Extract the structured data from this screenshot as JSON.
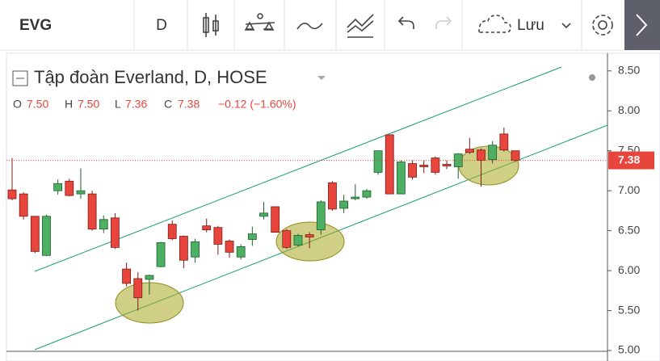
{
  "toolbar": {
    "symbol": "EVG",
    "interval": "D",
    "save": "Lưu"
  },
  "chart_data": {
    "type": "candlestick",
    "title": "Tập đoàn Everland, D, HOSE",
    "ohlc_legend": [
      {
        "label": "O",
        "value": "7.50"
      },
      {
        "label": "H",
        "value": "7.50"
      },
      {
        "label": "L",
        "value": "7.36"
      },
      {
        "label": "C",
        "value": "7.38"
      }
    ],
    "change": "−0.12 (−1.60%)",
    "last_price_label": "7.38",
    "up_color": "#4caf64",
    "down_color": "#e8453c",
    "open": [
      7.01,
      6.96,
      6.68,
      6.19,
      7.0,
      7.12,
      6.96,
      6.96,
      6.52,
      6.66,
      6.02,
      5.9,
      5.89,
      6.05,
      6.58,
      6.43,
      6.17,
      6.56,
      6.54,
      6.37,
      6.17,
      6.39,
      6.68,
      6.8,
      6.5,
      6.32,
      6.45,
      6.51,
      7.1,
      6.78,
      6.9,
      6.92,
      7.23,
      7.7,
      6.96,
      7.34,
      7.32,
      7.41,
      7.33,
      7.3,
      7.52,
      7.51,
      7.39,
      7.71,
      7.5
    ],
    "high": [
      7.41,
      6.98,
      6.68,
      6.7,
      7.14,
      7.15,
      7.28,
      7.0,
      6.69,
      6.72,
      6.1,
      5.98,
      5.95,
      6.36,
      6.63,
      6.44,
      6.4,
      6.65,
      6.56,
      6.39,
      6.33,
      6.55,
      6.86,
      6.8,
      6.52,
      6.46,
      6.48,
      6.88,
      7.12,
      6.95,
      7.08,
      7.02,
      7.5,
      7.7,
      7.38,
      7.38,
      7.38,
      7.43,
      7.38,
      7.47,
      7.66,
      7.53,
      7.62,
      7.79,
      7.5
    ],
    "low": [
      6.88,
      6.64,
      6.22,
      6.18,
      6.95,
      6.93,
      6.9,
      6.5,
      6.47,
      6.27,
      5.8,
      5.5,
      5.7,
      6.04,
      6.38,
      6.03,
      6.1,
      6.48,
      6.2,
      6.16,
      6.14,
      6.31,
      6.64,
      6.48,
      6.27,
      6.3,
      6.28,
      6.45,
      6.75,
      6.72,
      6.88,
      6.9,
      7.2,
      6.96,
      6.96,
      7.14,
      7.22,
      7.2,
      7.27,
      7.15,
      7.46,
      7.05,
      7.34,
      7.49,
      7.36
    ],
    "close": [
      6.9,
      6.68,
      6.24,
      6.68,
      7.09,
      6.94,
      7.0,
      6.52,
      6.64,
      6.29,
      5.84,
      5.66,
      5.94,
      6.35,
      6.4,
      6.13,
      6.36,
      6.51,
      6.33,
      6.23,
      6.3,
      6.46,
      6.72,
      6.48,
      6.29,
      6.44,
      6.42,
      6.86,
      6.77,
      6.87,
      6.92,
      7.0,
      7.5,
      6.96,
      7.36,
      7.17,
      7.3,
      7.23,
      7.31,
      7.46,
      7.48,
      7.38,
      7.57,
      7.51,
      7.38
    ],
    "ylim": [
      4.99,
      8.72
    ],
    "yticks": [
      {
        "value": 5,
        "label": "5.00"
      },
      {
        "value": 5.5,
        "label": "5.50"
      },
      {
        "value": 6,
        "label": "6.00"
      },
      {
        "value": 6.5,
        "label": "6.50"
      },
      {
        "value": 7,
        "label": "7.00"
      },
      {
        "value": 7.5,
        "label": "7.50"
      },
      {
        "value": 8,
        "label": "8.00"
      },
      {
        "value": 8.5,
        "label": "8.50"
      }
    ]
  }
}
